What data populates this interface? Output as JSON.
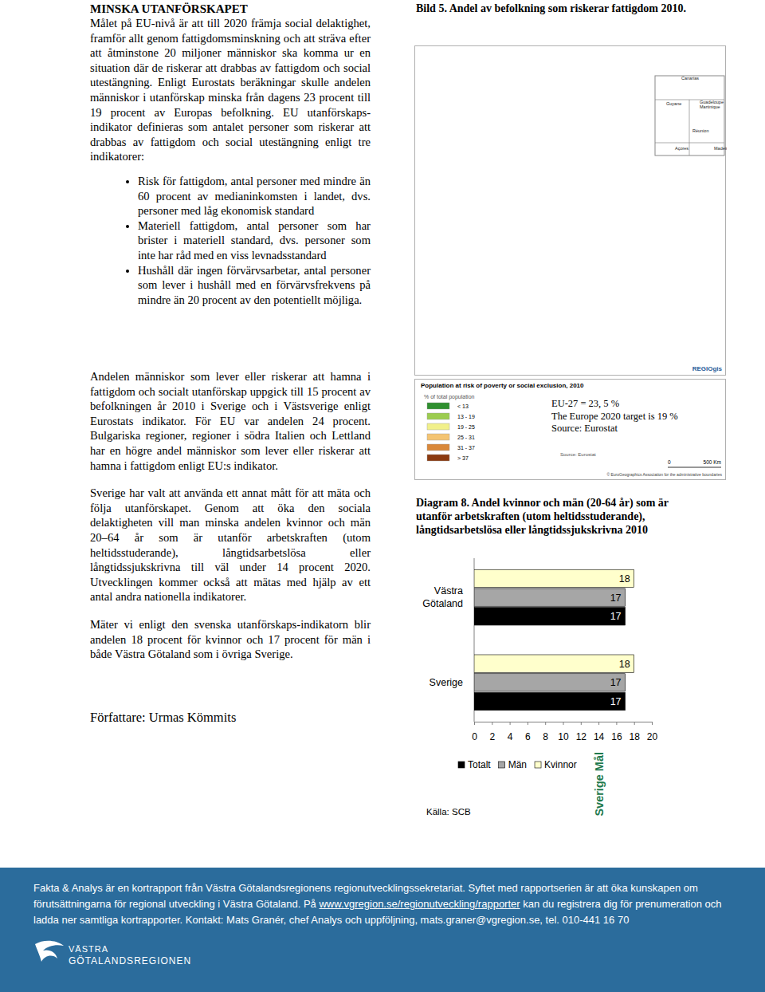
{
  "document": {
    "heading": "MINSKA UTANFÖRSKAPET",
    "intro": "Målet på EU-nivå är att till 2020 främja social delaktighet, framför allt genom fattigdomsminskning och att sträva efter att åtminstone 20 miljoner människor ska komma ur en situation där de riskerar att drabbas av fattigdom och social utestängning. Enligt Eurostats beräkningar skulle andelen människor i utanförskap minska från dagens 23 procent till 19 procent av Europas befolkning. EU utanförskaps-indikator definieras som antalet personer som riskerar att drabbas av fattigdom och social utestängning enligt tre indikatorer:",
    "bullets": [
      "Risk för fattigdom, antal personer med mindre än 60 procent av medianinkomsten i landet, dvs. personer med låg ekonomisk standard",
      "Materiell fattigdom, antal personer som har brister i materiell standard, dvs. personer som inte har råd med en viss levnadsstandard",
      "Hushåll där ingen förvärvsarbetar, antal personer som lever i hushåll med en förvärvsfrekvens på mindre än 20 procent av den potentiellt möjliga."
    ],
    "paragraphs": [
      "Andelen människor som lever eller riskerar att hamna i fattigdom och socialt utanförskap uppgick till 15 procent av befolkningen år 2010 i Sverige och i Västsverige enligt Eurostats indikator. För EU var andelen 24 procent. Bulgariska regioner, regioner i södra Italien och Lettland har en högre andel människor som lever eller riskerar att hamna i fattigdom enligt EU:s indikator.",
      "Sverige har valt att använda ett annat mått för att mäta och följa utanförskapet. Genom att öka den sociala delaktigheten vill man minska andelen kvinnor och män 20–64 år som är utanför arbetskraften (utom heltidsstuderande), långtidsarbetslösa eller långtidssjukskrivna till väl under 14 procent 2020. Utvecklingen kommer också att mätas med hjälp av ett antal andra nationella indikatorer.",
      "Mäter vi enligt den svenska utanförskaps-indikatorn blir andelen 18 procent för kvinnor och 17 procent för män i både Västra Götaland som i övriga Sverige."
    ],
    "author": "Författare: Urmas Kömmits",
    "map": {
      "title": "Bild 5. Andel av befolkning som riskerar fattigdom 2010.",
      "insets": [
        "Canarias",
        "Guyane",
        "Guadeloupe Martinique",
        "Réunion",
        "Açores",
        "Madeira"
      ],
      "credit": "REGIOgis",
      "legend_title": "Population at risk of poverty or social exclusion, 2010",
      "legend_subtitle": "% of total population",
      "classes": [
        {
          "label": "< 13",
          "color": "#2f8f2f"
        },
        {
          "label": "13 - 19",
          "color": "#9ccc4f"
        },
        {
          "label": "19 - 25",
          "color": "#f1f08a"
        },
        {
          "label": "25 - 31",
          "color": "#f4c472"
        },
        {
          "label": "31 - 37",
          "color": "#d9883a"
        },
        {
          "label": "> 37",
          "color": "#8b3a10"
        }
      ],
      "notes": [
        "EU-27 = 23, 5 %",
        "The Europe 2020 target is 19 %",
        "Source: Eurostat"
      ],
      "source": "Source: Eurostat",
      "scale_labels": [
        "0",
        "500 Km"
      ],
      "copyright": "© EuroGeographics Association for the administrative boundaries"
    },
    "footer": {
      "text_before": "Fakta & Analys är en kortrapport från Västra Götalandsregionens regionutvecklingssekretariat. Syftet med rapportserien är att öka kunskapen om förutsättningarna för regional utveckling i Västra Götaland. På ",
      "link": "www.vgregion.se/regionutveckling/rapporter",
      "text_after": " kan du registrera dig för prenumeration och ladda ner samtliga kortrapporter. Kontakt: Mats Granér, chef Analys och uppföljning, mats.graner@vgregion.se, tel. 010-441 16 70",
      "logo": [
        "VÄSTRA",
        "GÖTALANDSREGIONEN"
      ]
    }
  },
  "chart_data": {
    "type": "bar",
    "orientation": "horizontal",
    "title": "Diagram 8. Andel kvinnor och män (20-64 år) som är utanför arbetskraften (utom heltidsstuderande), långtidsarbetslösa eller långtidssjukskrivna 2010",
    "categories": [
      "Västra Götaland",
      "Sverige"
    ],
    "series": [
      {
        "name": "Totalt",
        "color": "#000000",
        "values": [
          17,
          17
        ]
      },
      {
        "name": "Män",
        "color": "#a6a6a6",
        "values": [
          17,
          17
        ]
      },
      {
        "name": "Kvinnor",
        "color": "#ffffcc",
        "values": [
          18,
          18
        ]
      }
    ],
    "xlim": [
      0,
      20
    ],
    "xticks": [
      0,
      2,
      4,
      6,
      8,
      10,
      12,
      14,
      16,
      18,
      20
    ],
    "data_labels": true,
    "legend": "bottom",
    "source": "Källa: SCB",
    "annotations": [
      {
        "x": 14,
        "text": "Sverige Mål"
      }
    ]
  }
}
